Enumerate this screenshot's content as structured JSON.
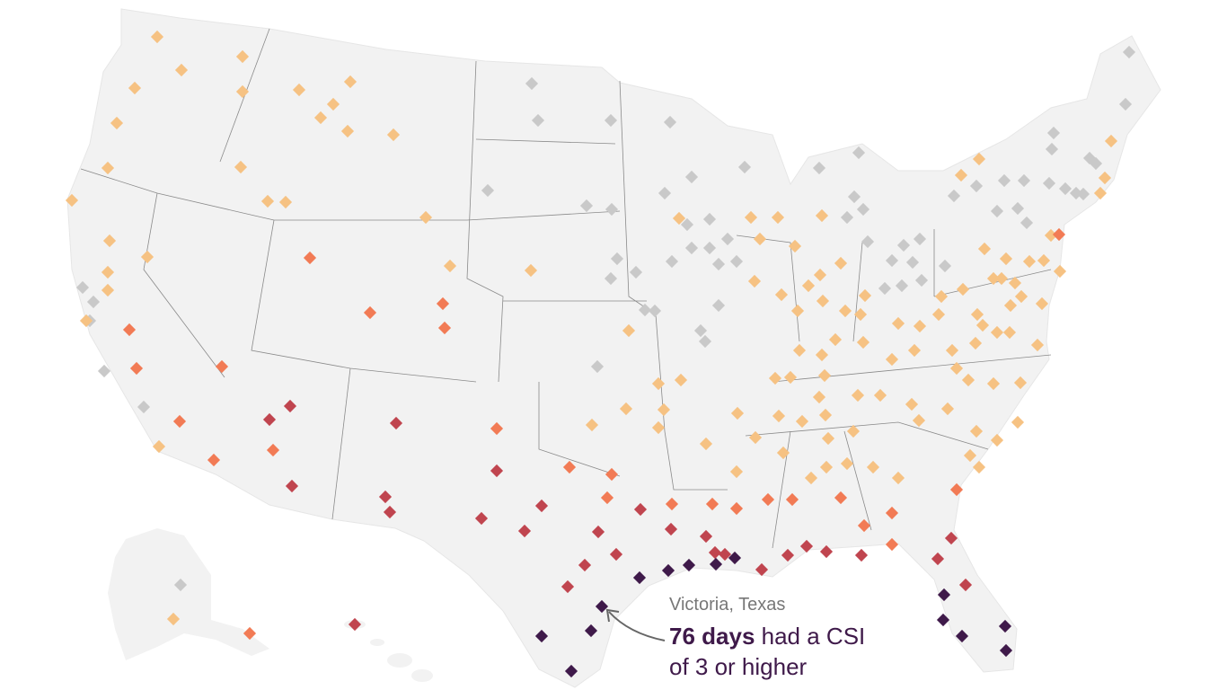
{
  "map": {
    "land_color": "#f2f2f2",
    "border_color": "#8a8a8a",
    "levels": [
      {
        "color": "#c9c9c9"
      },
      {
        "color": "#f6c283"
      },
      {
        "color": "#f27b55"
      },
      {
        "color": "#c0454f"
      },
      {
        "color": "#3f1a4a"
      }
    ]
  },
  "annotation": {
    "city": "Victoria, Texas",
    "days": "76 days",
    "text1": " had a CSI",
    "text2": "of 3 or higher",
    "arrow_color": "#666666"
  }
}
